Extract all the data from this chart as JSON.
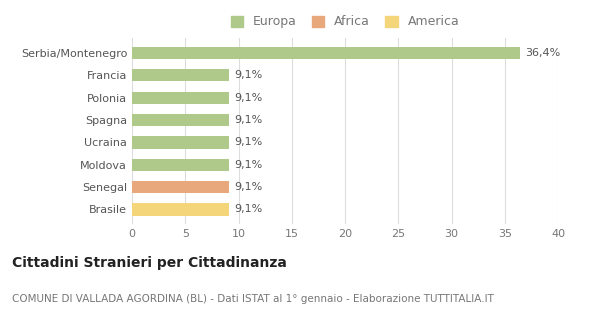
{
  "categories": [
    "Serbia/Montenegro",
    "Francia",
    "Polonia",
    "Spagna",
    "Ucraina",
    "Moldova",
    "Senegal",
    "Brasile"
  ],
  "values": [
    36.4,
    9.1,
    9.1,
    9.1,
    9.1,
    9.1,
    9.1,
    9.1
  ],
  "labels": [
    "36,4%",
    "9,1%",
    "9,1%",
    "9,1%",
    "9,1%",
    "9,1%",
    "9,1%",
    "9,1%"
  ],
  "bar_colors": [
    "#aec98a",
    "#aec98a",
    "#aec98a",
    "#aec98a",
    "#aec98a",
    "#aec98a",
    "#e8a87c",
    "#f5d57a"
  ],
  "legend_labels": [
    "Europa",
    "Africa",
    "America"
  ],
  "legend_colors": [
    "#aec98a",
    "#e8a87c",
    "#f5d57a"
  ],
  "xlim": [
    0,
    40
  ],
  "xticks": [
    0,
    5,
    10,
    15,
    20,
    25,
    30,
    35,
    40
  ],
  "title": "Cittadini Stranieri per Cittadinanza",
  "subtitle": "COMUNE DI VALLADA AGORDINA (BL) - Dati ISTAT al 1° gennaio - Elaborazione TUTTITALIA.IT",
  "background_color": "#ffffff",
  "grid_color": "#dddddd",
  "bar_height": 0.55,
  "title_fontsize": 10,
  "subtitle_fontsize": 7.5,
  "label_fontsize": 8,
  "tick_fontsize": 8,
  "legend_fontsize": 9
}
